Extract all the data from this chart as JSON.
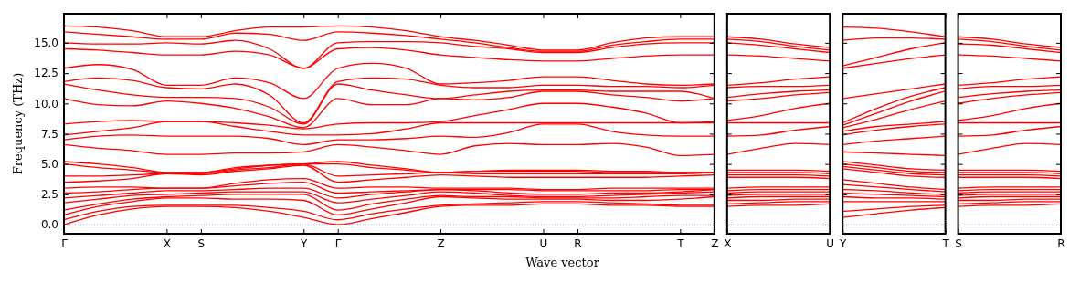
{
  "chart_data": [
    {
      "type": "line",
      "ylabel": "Frequency (THz)",
      "xlabel": "Wave vector",
      "categories": [
        "Γ",
        null,
        null,
        "X",
        "S",
        null,
        null,
        "Y",
        "Γ",
        null,
        null,
        "Z",
        null,
        null,
        "U",
        "R",
        null,
        null,
        "T",
        "Z"
      ],
      "ylim": [
        -0.75,
        17.4
      ],
      "yticks": [
        {
          "value": 0,
          "label": "0.0"
        },
        {
          "value": 2.5,
          "label": "2.5"
        },
        {
          "value": 5,
          "label": "5.0"
        },
        {
          "value": 7.5,
          "label": "7.5"
        },
        {
          "value": 10,
          "label": "10.0"
        },
        {
          "value": 12.5,
          "label": "12.5"
        },
        {
          "value": 15,
          "label": "15.0"
        }
      ],
      "marker": "none",
      "line_style": "solid",
      "grid": false,
      "ref_lines": [
        {
          "axis": "y",
          "value": 0,
          "color": "#8080ff",
          "line_style": "dotted"
        }
      ],
      "series": [
        {
          "color": "#ff0000",
          "values": [
            0,
            0.8,
            1.3,
            1.5,
            1.5,
            1.4,
            1.1,
            0.6,
            0,
            0.5,
            1.0,
            1.5,
            1.6,
            1.6,
            1.7,
            1.7,
            1.6,
            1.6,
            1.5,
            1.5
          ]
        },
        {
          "color": "#ff0000",
          "values": [
            0.4,
            1.1,
            1.5,
            1.6,
            1.6,
            1.6,
            1.4,
            1.1,
            0.4,
            0.9,
            1.3,
            1.6,
            1.7,
            1.8,
            1.9,
            1.9,
            1.8,
            1.7,
            1.6,
            1.6
          ]
        },
        {
          "color": "#ff0000",
          "values": [
            0.8,
            1.5,
            1.9,
            2.2,
            2.2,
            2.1,
            2.1,
            2.0,
            0.8,
            1.3,
            1.8,
            2.3,
            2.2,
            2.1,
            2.1,
            2.1,
            2.0,
            2.0,
            2.1,
            2.3
          ]
        },
        {
          "color": "#ff0000",
          "values": [
            1.2,
            1.7,
            2.1,
            2.3,
            2.4,
            2.5,
            2.5,
            2.5,
            1.2,
            1.7,
            2.1,
            2.4,
            2.3,
            2.3,
            2.2,
            2.2,
            2.2,
            2.3,
            2.4,
            2.4
          ]
        },
        {
          "color": "#ff0000",
          "values": [
            1.8,
            2.1,
            2.4,
            2.5,
            2.6,
            2.7,
            2.7,
            2.7,
            1.8,
            2.1,
            2.4,
            2.7,
            2.6,
            2.4,
            2.3,
            2.3,
            2.4,
            2.5,
            2.6,
            2.7
          ]
        },
        {
          "color": "#ff0000",
          "values": [
            2.2,
            2.4,
            2.6,
            2.8,
            2.8,
            2.9,
            3.0,
            3.0,
            2.2,
            2.5,
            2.7,
            2.9,
            2.8,
            2.6,
            2.5,
            2.5,
            2.6,
            2.6,
            2.7,
            2.9
          ]
        },
        {
          "color": "#ff0000",
          "values": [
            2.6,
            2.7,
            2.9,
            3.0,
            3.0,
            3.2,
            3.4,
            3.5,
            2.6,
            2.7,
            2.8,
            2.9,
            2.9,
            2.9,
            2.8,
            2.8,
            2.8,
            2.8,
            2.9,
            2.9
          ]
        },
        {
          "color": "#ff0000",
          "values": [
            3.0,
            3.1,
            3.1,
            3.0,
            3.0,
            3.4,
            3.7,
            3.8,
            3.0,
            3.1,
            3.1,
            3.0,
            3.0,
            3.0,
            2.9,
            2.9,
            3.0,
            3.0,
            3.0,
            3.0
          ]
        },
        {
          "color": "#ff0000",
          "values": [
            3.5,
            3.6,
            3.8,
            4.2,
            4.1,
            4.4,
            4.6,
            4.9,
            3.5,
            3.7,
            3.9,
            4.1,
            4.0,
            3.9,
            3.9,
            3.9,
            3.9,
            3.9,
            4.0,
            4.1
          ]
        },
        {
          "color": "#ff0000",
          "values": [
            4.0,
            4.0,
            4.1,
            4.2,
            4.2,
            4.5,
            4.7,
            5.0,
            4.0,
            4.1,
            4.2,
            4.3,
            4.2,
            4.2,
            4.2,
            4.2,
            4.2,
            4.2,
            4.2,
            4.3
          ]
        },
        {
          "color": "#ff0000",
          "values": [
            5.0,
            4.7,
            4.5,
            4.3,
            4.3,
            4.6,
            4.9,
            5.0,
            5.0,
            4.7,
            4.5,
            4.3,
            4.4,
            4.4,
            4.4,
            4.4,
            4.3,
            4.3,
            4.3,
            4.3
          ]
        },
        {
          "color": "#ff0000",
          "values": [
            5.2,
            5.0,
            4.7,
            4.3,
            4.3,
            4.7,
            4.9,
            5.0,
            5.2,
            4.9,
            4.6,
            4.3,
            4.4,
            4.5,
            4.5,
            4.5,
            4.4,
            4.4,
            4.3,
            4.3
          ]
        },
        {
          "color": "#ff0000",
          "values": [
            6.6,
            6.3,
            6.1,
            5.8,
            5.8,
            5.9,
            5.9,
            6.0,
            6.6,
            6.4,
            6.1,
            5.8,
            6.5,
            6.7,
            6.6,
            6.6,
            6.7,
            6.4,
            5.7,
            5.8
          ]
        },
        {
          "color": "#ff0000",
          "values": [
            7.0,
            7.3,
            7.4,
            7.3,
            7.3,
            7.3,
            7.1,
            6.6,
            7.0,
            7.0,
            7.1,
            7.3,
            7.2,
            7.6,
            8.3,
            8.3,
            7.7,
            7.4,
            7.3,
            7.3
          ]
        },
        {
          "color": "#ff0000",
          "values": [
            7.4,
            7.7,
            8.0,
            8.5,
            8.5,
            8.1,
            7.7,
            7.4,
            7.4,
            7.5,
            7.9,
            8.4,
            8.4,
            8.4,
            8.4,
            8.4,
            8.4,
            8.4,
            8.4,
            8.4
          ]
        },
        {
          "color": "#ff0000",
          "values": [
            8.3,
            8.5,
            8.6,
            8.5,
            8.5,
            8.4,
            8.2,
            7.9,
            8.3,
            8.4,
            8.4,
            8.5,
            9.0,
            9.5,
            10.0,
            10.0,
            9.7,
            9.2,
            8.4,
            8.5
          ]
        },
        {
          "color": "#ff0000",
          "values": [
            10.4,
            9.9,
            9.8,
            10.2,
            10.0,
            9.6,
            8.9,
            8.0,
            10.4,
            9.9,
            9.9,
            10.4,
            10.3,
            10.5,
            11.0,
            11.0,
            10.7,
            10.5,
            10.2,
            10.4
          ]
        },
        {
          "color": "#ff0000",
          "values": [
            11.6,
            11.1,
            10.7,
            10.5,
            10.5,
            10.4,
            9.7,
            8.3,
            11.6,
            11.1,
            10.7,
            10.4,
            10.7,
            11.0,
            11.1,
            11.1,
            11.0,
            11.0,
            11.0,
            10.4
          ]
        },
        {
          "color": "#ff0000",
          "values": [
            11.8,
            12.1,
            11.9,
            11.3,
            11.2,
            11.6,
            10.7,
            8.4,
            11.8,
            12.1,
            12.0,
            11.5,
            11.3,
            11.3,
            11.5,
            11.5,
            11.4,
            11.4,
            11.3,
            11.5
          ]
        },
        {
          "color": "#ff0000",
          "values": [
            12.9,
            13.2,
            12.8,
            11.5,
            11.5,
            12.1,
            11.7,
            10.4,
            12.9,
            13.3,
            12.9,
            11.6,
            11.7,
            11.9,
            12.2,
            12.2,
            11.9,
            11.6,
            11.5,
            11.6
          ]
        },
        {
          "color": "#ff0000",
          "values": [
            14.5,
            14.4,
            14.2,
            14.0,
            14.0,
            14.3,
            14.0,
            12.9,
            14.5,
            14.6,
            14.4,
            14.0,
            13.8,
            13.6,
            13.5,
            13.5,
            13.7,
            13.9,
            14.0,
            14.0
          ]
        },
        {
          "color": "#ff0000",
          "values": [
            15.0,
            14.9,
            14.9,
            15.0,
            14.9,
            15.2,
            14.5,
            12.9,
            15.0,
            15.1,
            15.1,
            15.0,
            14.7,
            14.5,
            14.2,
            14.2,
            14.6,
            14.9,
            15.0,
            15.0
          ]
        },
        {
          "color": "#ff0000",
          "values": [
            15.9,
            15.7,
            15.5,
            15.3,
            15.3,
            15.8,
            15.7,
            15.2,
            15.9,
            15.8,
            15.6,
            15.3,
            15.0,
            14.6,
            14.3,
            14.3,
            14.8,
            15.1,
            15.3,
            15.3
          ]
        },
        {
          "color": "#ff0000",
          "values": [
            16.4,
            16.3,
            16.0,
            15.5,
            15.5,
            16.0,
            16.3,
            16.3,
            16.4,
            16.3,
            16.0,
            15.5,
            15.2,
            14.8,
            14.4,
            14.4,
            15.0,
            15.4,
            15.5,
            15.5
          ]
        }
      ]
    },
    {
      "type": "line",
      "categories": [
        "X",
        null,
        null,
        "U"
      ],
      "ylim": [
        -0.75,
        17.4
      ],
      "yticks": [
        {
          "value": 0,
          "label": null
        },
        {
          "value": 2.5,
          "label": null
        },
        {
          "value": 5,
          "label": null
        },
        {
          "value": 7.5,
          "label": null
        },
        {
          "value": 10,
          "label": null
        },
        {
          "value": 12.5,
          "label": null
        },
        {
          "value": 15,
          "label": null
        }
      ],
      "tick_labels": "x",
      "marker": "none",
      "line_style": "solid",
      "grid": false,
      "ref_lines": [
        {
          "axis": "y",
          "value": 0,
          "color": "#8080ff",
          "line_style": "dotted"
        }
      ],
      "series": [
        {
          "color": "#ff0000",
          "values": [
            1.5,
            1.6,
            1.6,
            1.7
          ]
        },
        {
          "color": "#ff0000",
          "values": [
            1.7,
            1.8,
            1.9,
            1.9
          ]
        },
        {
          "color": "#ff0000",
          "values": [
            2.0,
            2.0,
            2.1,
            2.1
          ]
        },
        {
          "color": "#ff0000",
          "values": [
            2.2,
            2.3,
            2.3,
            2.3
          ]
        },
        {
          "color": "#ff0000",
          "values": [
            2.4,
            2.5,
            2.5,
            2.5
          ]
        },
        {
          "color": "#ff0000",
          "values": [
            2.6,
            2.7,
            2.7,
            2.7
          ]
        },
        {
          "color": "#ff0000",
          "values": [
            2.8,
            2.9,
            2.9,
            2.9
          ]
        },
        {
          "color": "#ff0000",
          "values": [
            3.0,
            3.1,
            3.1,
            3.1
          ]
        },
        {
          "color": "#ff0000",
          "values": [
            3.9,
            3.9,
            3.9,
            3.8
          ]
        },
        {
          "color": "#ff0000",
          "values": [
            4.1,
            4.1,
            4.1,
            4.0
          ]
        },
        {
          "color": "#ff0000",
          "values": [
            4.3,
            4.3,
            4.3,
            4.2
          ]
        },
        {
          "color": "#ff0000",
          "values": [
            4.5,
            4.5,
            4.5,
            4.4
          ]
        },
        {
          "color": "#ff0000",
          "values": [
            5.8,
            6.3,
            6.7,
            6.6
          ]
        },
        {
          "color": "#ff0000",
          "values": [
            7.3,
            7.4,
            7.8,
            8.1
          ]
        },
        {
          "color": "#ff0000",
          "values": [
            8.4,
            8.4,
            8.4,
            8.4
          ]
        },
        {
          "color": "#ff0000",
          "values": [
            8.6,
            9.0,
            9.6,
            10.0
          ]
        },
        {
          "color": "#ff0000",
          "values": [
            10.2,
            10.4,
            10.7,
            10.9
          ]
        },
        {
          "color": "#ff0000",
          "values": [
            10.5,
            10.8,
            11.0,
            11.1
          ]
        },
        {
          "color": "#ff0000",
          "values": [
            11.3,
            11.4,
            11.4,
            11.5
          ]
        },
        {
          "color": "#ff0000",
          "values": [
            11.5,
            11.7,
            12.0,
            12.2
          ]
        },
        {
          "color": "#ff0000",
          "values": [
            14.0,
            13.9,
            13.7,
            13.5
          ]
        },
        {
          "color": "#ff0000",
          "values": [
            15.0,
            14.8,
            14.5,
            14.2
          ]
        },
        {
          "color": "#ff0000",
          "values": [
            15.3,
            15.1,
            14.7,
            14.4
          ]
        },
        {
          "color": "#ff0000",
          "values": [
            15.5,
            15.3,
            14.9,
            14.6
          ]
        }
      ]
    },
    {
      "type": "line",
      "categories": [
        "Y",
        null,
        null,
        "T"
      ],
      "ylim": [
        -0.75,
        17.4
      ],
      "yticks": [
        {
          "value": 0,
          "label": null
        },
        {
          "value": 2.5,
          "label": null
        },
        {
          "value": 5,
          "label": null
        },
        {
          "value": 7.5,
          "label": null
        },
        {
          "value": 10,
          "label": null
        },
        {
          "value": 12.5,
          "label": null
        },
        {
          "value": 15,
          "label": null
        }
      ],
      "tick_labels": "x",
      "marker": "none",
      "line_style": "solid",
      "grid": false,
      "ref_lines": [
        {
          "axis": "y",
          "value": 0,
          "color": "#8080ff",
          "line_style": "dotted"
        }
      ],
      "series": [
        {
          "color": "#ff0000",
          "values": [
            0.6,
            0.9,
            1.2,
            1.4
          ]
        },
        {
          "color": "#ff0000",
          "values": [
            1.1,
            1.3,
            1.5,
            1.6
          ]
        },
        {
          "color": "#ff0000",
          "values": [
            1.9,
            1.9,
            1.9,
            1.9
          ]
        },
        {
          "color": "#ff0000",
          "values": [
            2.3,
            2.2,
            2.2,
            2.1
          ]
        },
        {
          "color": "#ff0000",
          "values": [
            2.6,
            2.5,
            2.4,
            2.3
          ]
        },
        {
          "color": "#ff0000",
          "values": [
            2.9,
            2.8,
            2.6,
            2.5
          ]
        },
        {
          "color": "#ff0000",
          "values": [
            3.3,
            3.1,
            2.9,
            2.7
          ]
        },
        {
          "color": "#ff0000",
          "values": [
            3.7,
            3.4,
            3.1,
            2.9
          ]
        },
        {
          "color": "#ff0000",
          "values": [
            4.6,
            4.3,
            4.0,
            3.9
          ]
        },
        {
          "color": "#ff0000",
          "values": [
            4.8,
            4.5,
            4.2,
            4.1
          ]
        },
        {
          "color": "#ff0000",
          "values": [
            5.0,
            4.7,
            4.4,
            4.3
          ]
        },
        {
          "color": "#ff0000",
          "values": [
            5.2,
            4.9,
            4.6,
            4.5
          ]
        },
        {
          "color": "#ff0000",
          "values": [
            6.0,
            5.9,
            5.8,
            5.7
          ]
        },
        {
          "color": "#ff0000",
          "values": [
            6.6,
            6.9,
            7.1,
            7.3
          ]
        },
        {
          "color": "#ff0000",
          "values": [
            7.4,
            7.8,
            8.1,
            8.3
          ]
        },
        {
          "color": "#ff0000",
          "values": [
            7.7,
            8.1,
            8.3,
            8.5
          ]
        },
        {
          "color": "#ff0000",
          "values": [
            8.0,
            8.7,
            9.5,
            10.2
          ]
        },
        {
          "color": "#ff0000",
          "values": [
            8.2,
            9.2,
            10.2,
            11.0
          ]
        },
        {
          "color": "#ff0000",
          "values": [
            8.4,
            9.6,
            10.6,
            11.3
          ]
        },
        {
          "color": "#ff0000",
          "values": [
            10.4,
            10.8,
            11.2,
            11.6
          ]
        },
        {
          "color": "#ff0000",
          "values": [
            12.9,
            13.3,
            13.7,
            14.0
          ]
        },
        {
          "color": "#ff0000",
          "values": [
            13.1,
            13.8,
            14.5,
            15.0
          ]
        },
        {
          "color": "#ff0000",
          "values": [
            15.2,
            15.4,
            15.4,
            15.3
          ]
        },
        {
          "color": "#ff0000",
          "values": [
            16.3,
            16.2,
            15.9,
            15.5
          ]
        }
      ]
    },
    {
      "type": "line",
      "categories": [
        "S",
        null,
        null,
        "R"
      ],
      "ylim": [
        -0.75,
        17.4
      ],
      "yticks": [
        {
          "value": 0,
          "label": null
        },
        {
          "value": 2.5,
          "label": null
        },
        {
          "value": 5,
          "label": null
        },
        {
          "value": 7.5,
          "label": null
        },
        {
          "value": 10,
          "label": null
        },
        {
          "value": 12.5,
          "label": null
        },
        {
          "value": 15,
          "label": null
        }
      ],
      "tick_labels": "x",
      "marker": "none",
      "line_style": "solid",
      "grid": false,
      "ref_lines": [
        {
          "axis": "y",
          "value": 0,
          "color": "#8080ff",
          "line_style": "dotted"
        }
      ],
      "series": [
        {
          "color": "#ff0000",
          "values": [
            1.5,
            1.6,
            1.6,
            1.7
          ]
        },
        {
          "color": "#ff0000",
          "values": [
            1.7,
            1.8,
            1.9,
            1.9
          ]
        },
        {
          "color": "#ff0000",
          "values": [
            2.0,
            2.0,
            2.1,
            2.1
          ]
        },
        {
          "color": "#ff0000",
          "values": [
            2.2,
            2.3,
            2.3,
            2.3
          ]
        },
        {
          "color": "#ff0000",
          "values": [
            2.4,
            2.5,
            2.5,
            2.5
          ]
        },
        {
          "color": "#ff0000",
          "values": [
            2.6,
            2.7,
            2.7,
            2.7
          ]
        },
        {
          "color": "#ff0000",
          "values": [
            2.8,
            2.9,
            2.9,
            2.9
          ]
        },
        {
          "color": "#ff0000",
          "values": [
            3.0,
            3.1,
            3.1,
            3.1
          ]
        },
        {
          "color": "#ff0000",
          "values": [
            3.9,
            3.9,
            3.9,
            3.8
          ]
        },
        {
          "color": "#ff0000",
          "values": [
            4.1,
            4.1,
            4.1,
            4.0
          ]
        },
        {
          "color": "#ff0000",
          "values": [
            4.3,
            4.3,
            4.3,
            4.2
          ]
        },
        {
          "color": "#ff0000",
          "values": [
            4.5,
            4.5,
            4.5,
            4.4
          ]
        },
        {
          "color": "#ff0000",
          "values": [
            5.8,
            6.3,
            6.7,
            6.6
          ]
        },
        {
          "color": "#ff0000",
          "values": [
            7.3,
            7.4,
            7.8,
            8.1
          ]
        },
        {
          "color": "#ff0000",
          "values": [
            8.4,
            8.4,
            8.4,
            8.4
          ]
        },
        {
          "color": "#ff0000",
          "values": [
            8.6,
            9.0,
            9.6,
            10.0
          ]
        },
        {
          "color": "#ff0000",
          "values": [
            10.0,
            10.4,
            10.7,
            10.9
          ]
        },
        {
          "color": "#ff0000",
          "values": [
            10.5,
            10.8,
            11.0,
            11.1
          ]
        },
        {
          "color": "#ff0000",
          "values": [
            11.2,
            11.4,
            11.4,
            11.5
          ]
        },
        {
          "color": "#ff0000",
          "values": [
            11.5,
            11.7,
            12.0,
            12.2
          ]
        },
        {
          "color": "#ff0000",
          "values": [
            14.0,
            13.9,
            13.7,
            13.5
          ]
        },
        {
          "color": "#ff0000",
          "values": [
            14.9,
            14.8,
            14.5,
            14.2
          ]
        },
        {
          "color": "#ff0000",
          "values": [
            15.3,
            15.1,
            14.7,
            14.4
          ]
        },
        {
          "color": "#ff0000",
          "values": [
            15.5,
            15.3,
            14.9,
            14.6
          ]
        }
      ]
    }
  ]
}
